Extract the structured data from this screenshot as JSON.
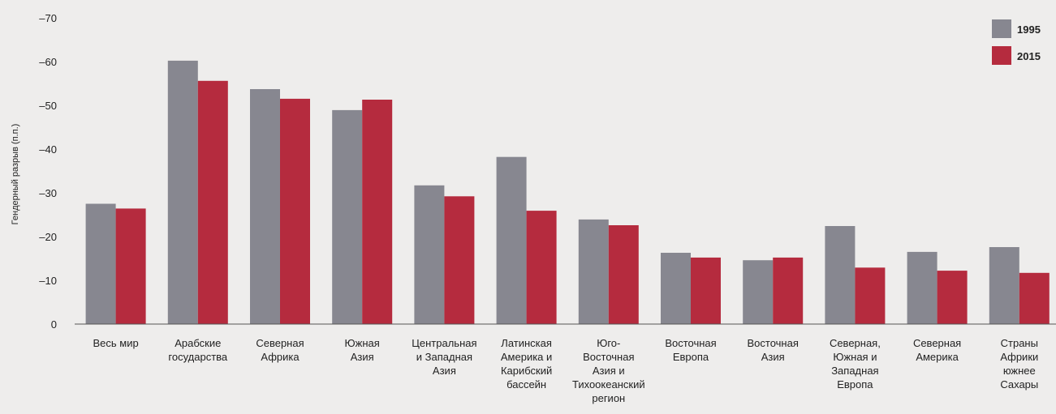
{
  "chart_data": {
    "type": "bar",
    "ylabel": "Гендерный разрыв (п.п.)",
    "xlabel": "",
    "yticks": [
      "0",
      "–10",
      "–20",
      "–30",
      "–40",
      "–50",
      "–60",
      "–70"
    ],
    "ylim": [
      0,
      -70
    ],
    "categories": [
      [
        "Весь мир"
      ],
      [
        "Арабские",
        "государства"
      ],
      [
        "Северная",
        "Африка"
      ],
      [
        "Южная",
        "Азия"
      ],
      [
        "Центральная",
        "и Западная",
        "Азия"
      ],
      [
        "Латинская",
        "Америка и",
        "Карибский",
        "бассейн"
      ],
      [
        "Юго-",
        "Восточная",
        "Азия и",
        "Тихоокеанский",
        "регион"
      ],
      [
        "Восточная",
        "Европа"
      ],
      [
        "Восточная",
        "Азия"
      ],
      [
        "Северная,",
        "Южная и",
        "Западная",
        "Европа"
      ],
      [
        "Северная",
        "Америка"
      ],
      [
        "Страны",
        "Африки",
        "южнее",
        "Сахары"
      ]
    ],
    "series": [
      {
        "name": "1995",
        "color": "#878790",
        "values": [
          -27.5,
          -60.2,
          -53.7,
          -48.9,
          -31.7,
          -38.2,
          -23.9,
          -16.3,
          -14.6,
          -22.4,
          -16.5,
          -17.6
        ]
      },
      {
        "name": "2015",
        "color": "#b52b3e",
        "values": [
          -26.4,
          -55.6,
          -51.5,
          -51.3,
          -29.2,
          -25.9,
          -22.6,
          -15.2,
          -15.2,
          -12.9,
          -12.2,
          -11.7
        ]
      }
    ],
    "legend_position": "top-right",
    "grid": false
  }
}
